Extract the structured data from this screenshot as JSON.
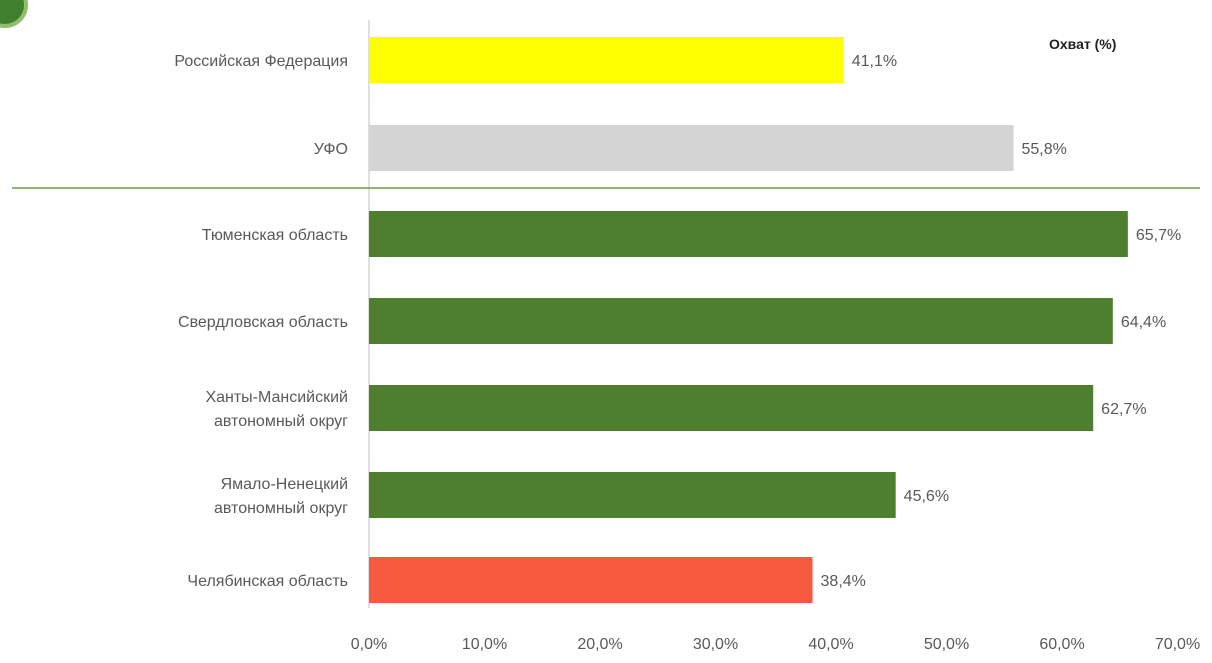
{
  "chart_data": {
    "type": "bar",
    "orientation": "horizontal",
    "title": "",
    "legend_title": "Охват (%)",
    "legend_position": "top-right",
    "xlabel": "",
    "ylabel": "",
    "xlim": [
      0,
      70
    ],
    "x_ticks": [
      "0,0%",
      "10,0%",
      "20,0%",
      "30,0%",
      "40,0%",
      "50,0%",
      "60,0%",
      "70,0%"
    ],
    "grid": false,
    "separator_after_index": 1,
    "categories": [
      "Российская Федерация",
      "УФО",
      "Тюменская область",
      "Свердловская область",
      "Ханты-Мансийский автономный округ",
      "Ямало-Ненецкий автономный округ",
      "Челябинская область"
    ],
    "values": [
      41.1,
      55.8,
      65.7,
      64.4,
      62.7,
      45.6,
      38.4
    ],
    "value_labels": [
      "41,1%",
      "55,8%",
      "65,7%",
      "64,4%",
      "62,7%",
      "45,6%",
      "38,4%"
    ],
    "bar_colors": [
      "#ffff00",
      "#d4d4d4",
      "#4e7f2e",
      "#4e7f2e",
      "#4e7f2e",
      "#4e7f2e",
      "#f85a40"
    ],
    "axis_color": "#bfbfbf",
    "separator_color": "#6a9e3f",
    "text_color": "#595959"
  }
}
